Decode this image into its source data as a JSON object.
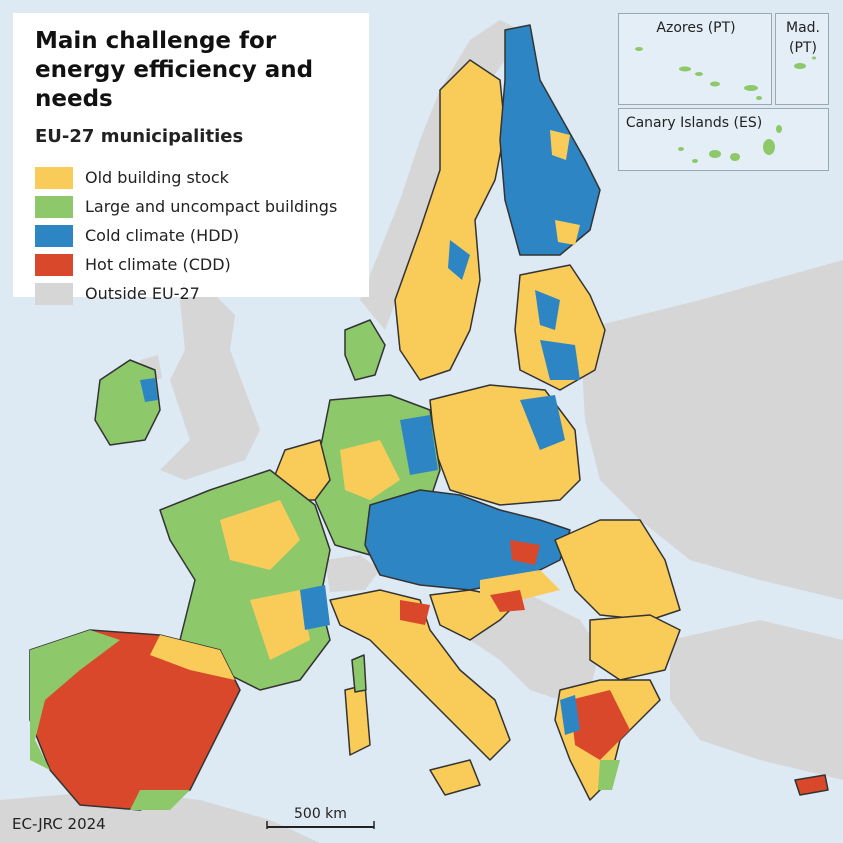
{
  "legend": {
    "title": "Main challenge for energy efficiency and needs",
    "subtitle": "EU-27 municipalities",
    "items": [
      {
        "label": "Old building stock",
        "color": "#f9cc5a"
      },
      {
        "label": "Large and uncompact buildings",
        "color": "#8dc86a"
      },
      {
        "label": "Cold climate (HDD)",
        "color": "#2d86c3"
      },
      {
        "label": "Hot climate (CDD)",
        "color": "#d9482b"
      },
      {
        "label": "Outside EU-27",
        "color": "#d6d6d6"
      }
    ]
  },
  "insets": {
    "azores": "Azores (PT)",
    "madeira": "Mad.\n(PT)",
    "canary": "Canary Islands (ES)"
  },
  "scale_bar": {
    "label": "500 km"
  },
  "credit": "EC-JRC 2024",
  "colors": {
    "sea": "#dde9f3",
    "border": "#333333"
  }
}
